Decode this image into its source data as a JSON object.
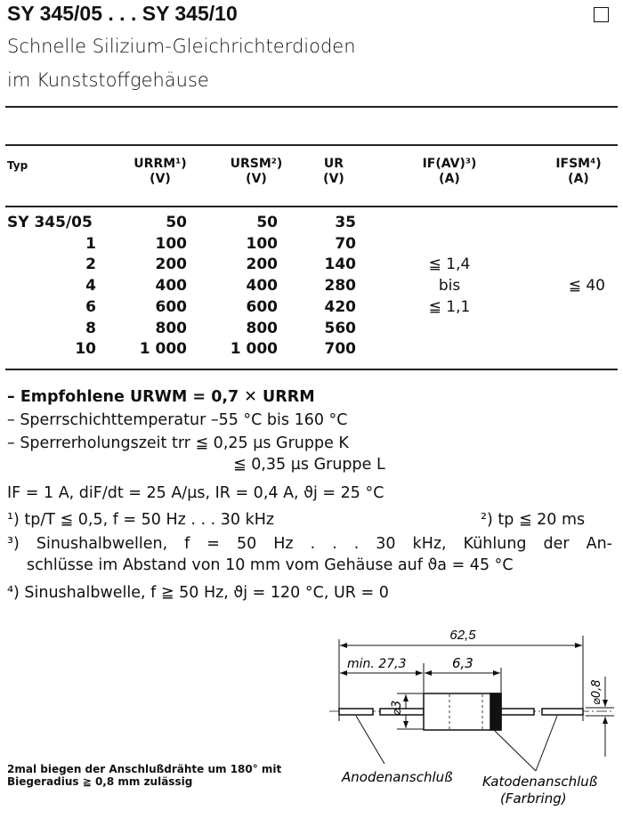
{
  "header": {
    "title": "SY 345/05 . . . SY 345/10",
    "subtitle_line1": "Schnelle Silizium-Gleichrichterdioden",
    "subtitle_line2": "im Kunststoffgehäuse"
  },
  "table": {
    "columns": [
      {
        "label": "Typ",
        "unit": ""
      },
      {
        "label": "URRM¹)",
        "unit": "(V)"
      },
      {
        "label": "URSM²)",
        "unit": "(V)"
      },
      {
        "label": "UR",
        "unit": "(V)"
      },
      {
        "label": "IF(AV)³)",
        "unit": "(A)"
      },
      {
        "label": "IFSM⁴)",
        "unit": "(A)"
      }
    ],
    "rows": [
      {
        "typ": "SY 345/05",
        "urrm": "50",
        "ursm": "50",
        "ur": "35"
      },
      {
        "typ": "1",
        "urrm": "100",
        "ursm": "100",
        "ur": "70"
      },
      {
        "typ": "2",
        "urrm": "200",
        "ursm": "200",
        "ur": "140"
      },
      {
        "typ": "4",
        "urrm": "400",
        "ursm": "400",
        "ur": "280"
      },
      {
        "typ": "6",
        "urrm": "600",
        "ursm": "600",
        "ur": "420"
      },
      {
        "typ": "8",
        "urrm": "800",
        "ursm": "800",
        "ur": "560"
      },
      {
        "typ": "10",
        "urrm": "1 000",
        "ursm": "1 000",
        "ur": "700"
      }
    ],
    "ifav": [
      "≦ 1,4",
      "bis",
      "≦ 1,1"
    ],
    "ifsm": "≦ 40"
  },
  "notes": [
    "– Empfohlene URWM = 0,7 ✕ URRM",
    "– Sperrschichttemperatur –55 °C bis 160 °C",
    "– Sperrerholungszeit trr ≦ 0,25 µs Gruppe K",
    "≦ 0,35 µs Gruppe L",
    "IF = 1 A, diF/dt = 25 A/µs, IR = 0,4 A, ϑj = 25 °C",
    "¹) tp/T ≦ 0,5, f = 50 Hz . . . 30 kHz",
    "²) tp ≦ 20 ms",
    "³) Sinushalbwellen, f = 50 Hz . . . 30 kHz, Kühlung der An-",
    "schlüsse im Abstand von 10 mm vom Gehäuse auf ϑa = 45 °C",
    "⁴) Sinushalbwelle, f ≧ 50 Hz, ϑj = 120 °C, UR = 0"
  ],
  "bend_note": "2mal biegen der Anschlußdrähte um 180° mit Biegeradius ≧ 0,8 mm zulässig",
  "drawing": {
    "total_length": "62,5",
    "min_lead": "min. 27,3",
    "body_length": "6,3",
    "body_diameter": "⌀3",
    "lead_diameter": "⌀0,8",
    "anode_label": "Anodenanschluß",
    "cathode_label": "Katodenanschluß",
    "cathode_sub": "(Farbring)"
  }
}
